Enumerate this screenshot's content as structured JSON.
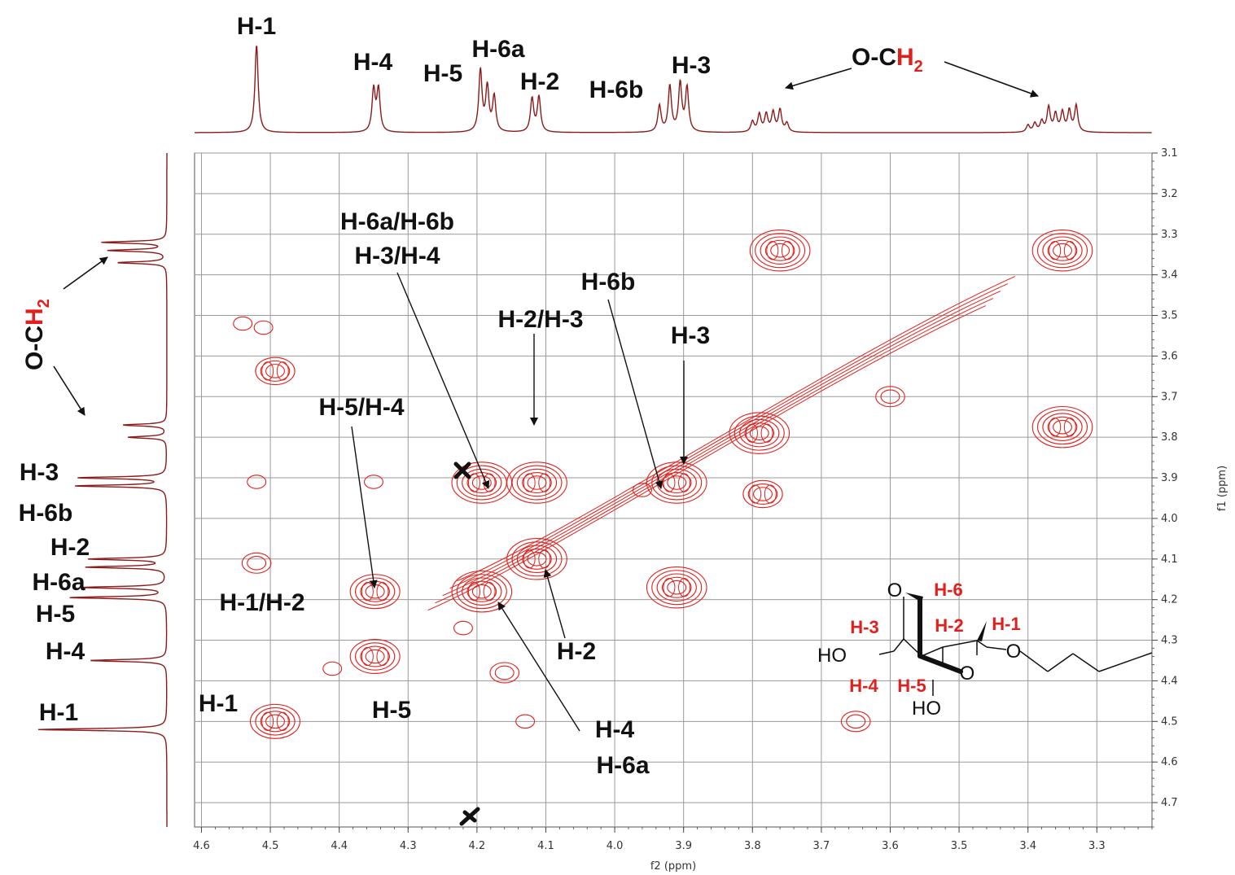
{
  "chart_data": {
    "type": "contour",
    "x_axis": {
      "label": "f2 (ppm)",
      "ticks": [
        4.6,
        4.5,
        4.4,
        4.3,
        4.2,
        4.1,
        4.0,
        3.9,
        3.8,
        3.7,
        3.6,
        3.5,
        3.4,
        3.3
      ],
      "range": [
        4.61,
        3.22
      ],
      "reversed": true
    },
    "y_axis": {
      "label": "f1 (ppm)",
      "ticks": [
        3.1,
        3.2,
        3.3,
        3.4,
        3.5,
        3.6,
        3.7,
        3.8,
        3.9,
        4.0,
        4.1,
        4.2,
        4.3,
        4.4,
        4.5,
        4.6,
        4.7
      ],
      "range": [
        3.1,
        4.76
      ],
      "reversed": true
    },
    "grid": true,
    "colors": {
      "contour": "#e0201c",
      "spectrum": "#8b1a1a",
      "annotation": "#111111",
      "highlight": "#e0201c"
    },
    "cross_peaks": [
      {
        "f2": 4.493,
        "f1": 3.637,
        "rings": 3
      },
      {
        "f2": 4.493,
        "f1": 4.5,
        "rings": 4
      },
      {
        "f2": 3.76,
        "f1": 3.34,
        "rings": 5
      },
      {
        "f2": 3.35,
        "f1": 3.34,
        "rings": 5
      },
      {
        "f2": 3.35,
        "f1": 3.775,
        "rings": 5
      },
      {
        "f2": 4.193,
        "f1": 3.912,
        "rings": 5
      },
      {
        "f2": 4.113,
        "f1": 3.912,
        "rings": 5
      },
      {
        "f2": 4.113,
        "f1": 4.1,
        "rings": 5
      },
      {
        "f2": 4.193,
        "f1": 4.18,
        "rings": 5
      },
      {
        "f2": 3.91,
        "f1": 3.912,
        "rings": 5
      },
      {
        "f2": 3.91,
        "f1": 4.17,
        "rings": 5
      },
      {
        "f2": 4.348,
        "f1": 4.18,
        "rings": 4
      },
      {
        "f2": 4.348,
        "f1": 4.34,
        "rings": 4
      },
      {
        "f2": 3.79,
        "f1": 3.79,
        "rings": 5
      },
      {
        "f2": 3.785,
        "f1": 3.94,
        "rings": 3
      },
      {
        "f2": 4.52,
        "f1": 4.11,
        "rings": 2
      },
      {
        "f2": 4.52,
        "f1": 3.91,
        "rings": 1
      },
      {
        "f2": 4.35,
        "f1": 3.91,
        "rings": 1
      },
      {
        "f2": 4.13,
        "f1": 4.5,
        "rings": 1
      },
      {
        "f2": 3.65,
        "f1": 4.5,
        "rings": 2
      },
      {
        "f2": 3.6,
        "f1": 3.7,
        "rings": 2
      },
      {
        "f2": 4.22,
        "f1": 4.27,
        "rings": 1
      },
      {
        "f2": 4.54,
        "f1": 3.52,
        "rings": 1
      },
      {
        "f2": 4.51,
        "f1": 3.53,
        "rings": 1
      },
      {
        "f2": 3.96,
        "f1": 3.93,
        "rings": 1
      },
      {
        "f2": 4.41,
        "f1": 4.37,
        "rings": 1
      },
      {
        "f2": 4.16,
        "f1": 4.38,
        "rings": 2
      }
    ],
    "diagonal": [
      [
        4.25,
        4.19
      ],
      [
        3.44,
        3.44
      ]
    ],
    "top_spectrum_peaks": [
      {
        "ppm": 4.52,
        "h": 1.0
      },
      {
        "ppm": 4.35,
        "h": 0.48
      },
      {
        "ppm": 4.343,
        "h": 0.48
      },
      {
        "ppm": 4.195,
        "h": 0.7
      },
      {
        "ppm": 4.185,
        "h": 0.5
      },
      {
        "ppm": 4.175,
        "h": 0.4
      },
      {
        "ppm": 4.12,
        "h": 0.38
      },
      {
        "ppm": 4.11,
        "h": 0.4
      },
      {
        "ppm": 3.935,
        "h": 0.3
      },
      {
        "ppm": 3.92,
        "h": 0.52
      },
      {
        "ppm": 3.905,
        "h": 0.55
      },
      {
        "ppm": 3.895,
        "h": 0.5
      },
      {
        "ppm": 3.8,
        "h": 0.12
      },
      {
        "ppm": 3.79,
        "h": 0.2
      },
      {
        "ppm": 3.78,
        "h": 0.2
      },
      {
        "ppm": 3.77,
        "h": 0.22
      },
      {
        "ppm": 3.76,
        "h": 0.25
      },
      {
        "ppm": 3.75,
        "h": 0.1
      },
      {
        "ppm": 3.4,
        "h": 0.08
      },
      {
        "ppm": 3.39,
        "h": 0.1
      },
      {
        "ppm": 3.38,
        "h": 0.12
      },
      {
        "ppm": 3.37,
        "h": 0.28
      },
      {
        "ppm": 3.36,
        "h": 0.2
      },
      {
        "ppm": 3.35,
        "h": 0.22
      },
      {
        "ppm": 3.34,
        "h": 0.24
      },
      {
        "ppm": 3.33,
        "h": 0.3
      }
    ],
    "left_spectrum_peaks": [
      {
        "ppm": 4.52,
        "h": 1.0
      },
      {
        "ppm": 4.35,
        "h": 0.6
      },
      {
        "ppm": 4.195,
        "h": 0.75
      },
      {
        "ppm": 4.17,
        "h": 0.65
      },
      {
        "ppm": 4.12,
        "h": 0.62
      },
      {
        "ppm": 4.1,
        "h": 0.6
      },
      {
        "ppm": 3.92,
        "h": 0.7
      },
      {
        "ppm": 3.9,
        "h": 0.68
      },
      {
        "ppm": 3.8,
        "h": 0.3
      },
      {
        "ppm": 3.77,
        "h": 0.34
      },
      {
        "ppm": 3.37,
        "h": 0.38
      },
      {
        "ppm": 3.34,
        "h": 0.45
      },
      {
        "ppm": 3.32,
        "h": 0.5
      }
    ]
  },
  "labels": {
    "top": {
      "h1": "H-1",
      "h4": "H-4",
      "h5": "H-5",
      "h6a": "H-6a",
      "h2": "H-2",
      "h6b": "H-6b",
      "h3": "H-3",
      "och": "O-C",
      "h_sub": "H",
      "sub2": "2"
    },
    "left": {
      "och": "O-C",
      "h_sub": "H",
      "sub2": "2",
      "h3": "H-3",
      "h6b": "H-6b",
      "h2": "H-2",
      "h6a": "H-6a",
      "h5": "H-5",
      "h4": "H-4",
      "h1": "H-1"
    },
    "plot": {
      "h6a_h6b": "H-6a/H-6b",
      "h3_h4": "H-3/H-4",
      "h6b": "H-6b",
      "h2_h3": "H-2/H-3",
      "h3": "H-3",
      "h5_h4": "H-5/H-4",
      "h1_h2": "H-1/H-2",
      "h1": "H-1",
      "h5": "H-5",
      "h2": "H-2",
      "h4": "H-4",
      "h6a": "H-6a"
    },
    "structure": {
      "o1": "O",
      "o2": "O",
      "o3": "O",
      "ho1": "HO",
      "ho2": "HO",
      "h6": "H-6",
      "h3": "H-3",
      "h2": "H-2",
      "h1": "H-1",
      "h4": "H-4",
      "h5": "H-5"
    }
  }
}
